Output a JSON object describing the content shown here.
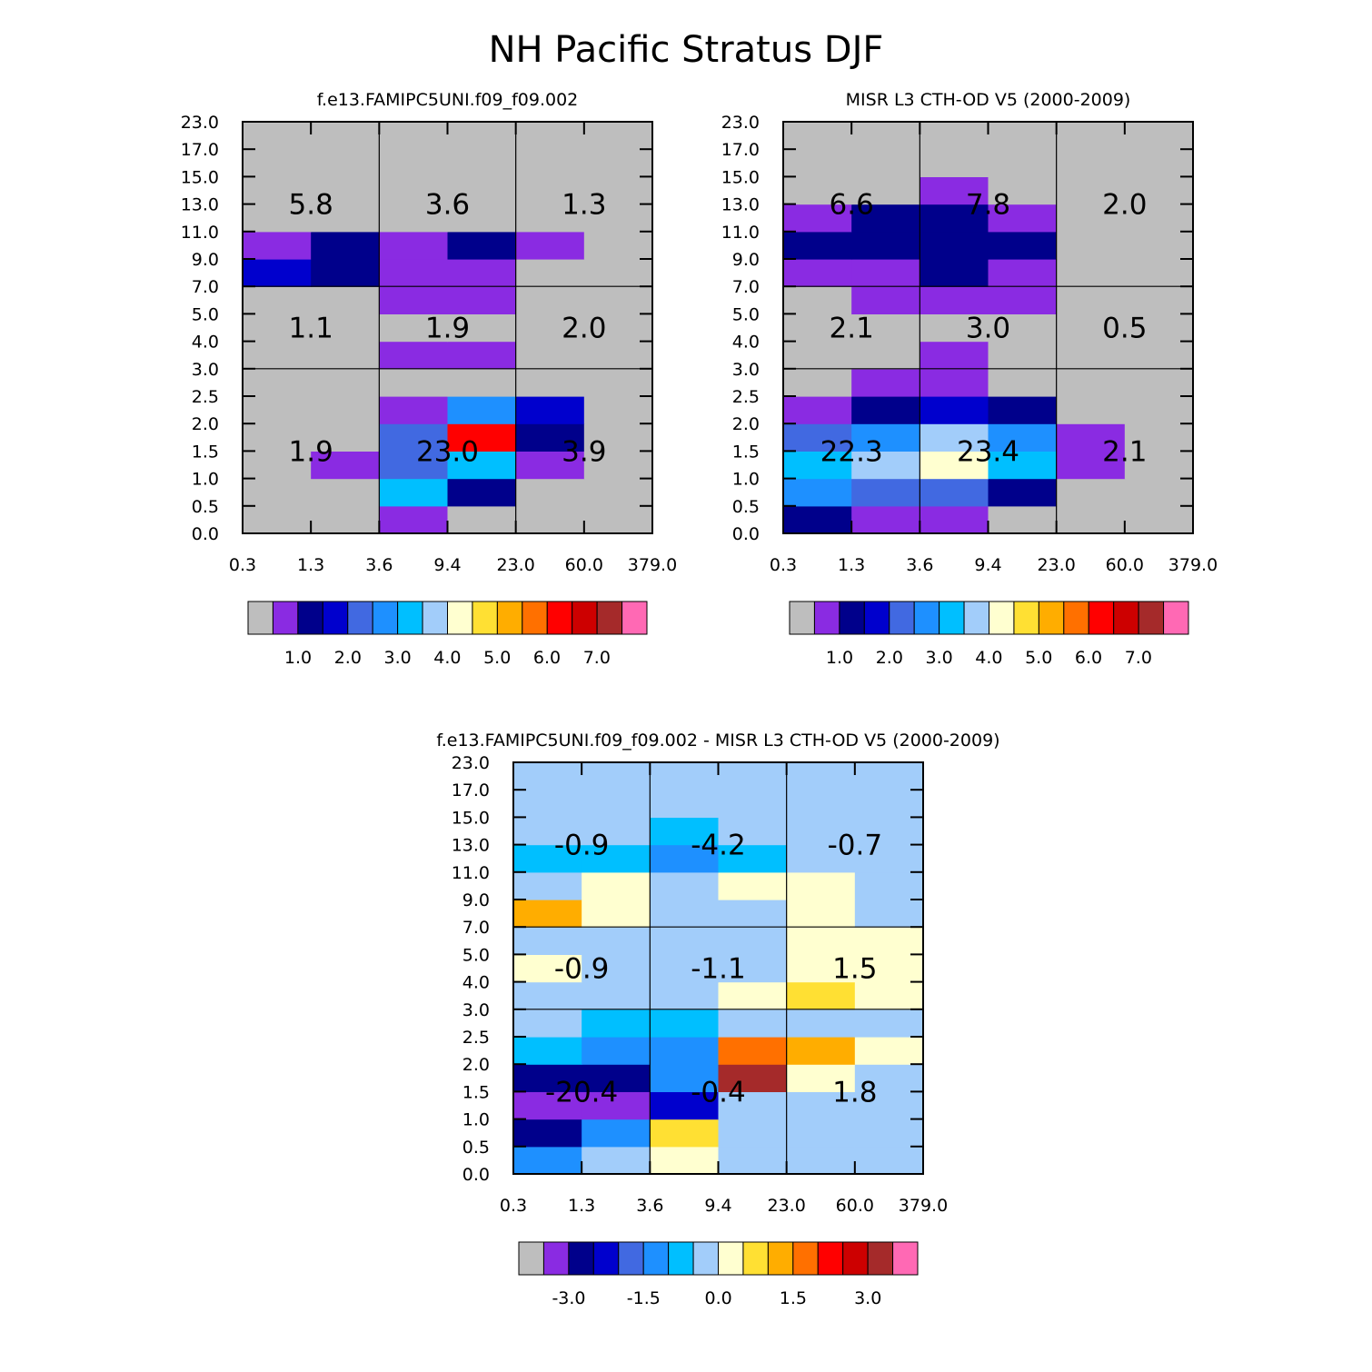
{
  "title": "NH Pacific Stratus DJF",
  "palette": [
    "#bebebe",
    "#8a2be2",
    "#00008b",
    "#0000cd",
    "#4169e1",
    "#1e90ff",
    "#00bfff",
    "#a2cdfa",
    "#ffffd0",
    "#ffe033",
    "#ffad00",
    "#ff7000",
    "#ff0000",
    "#cd0000",
    "#a52a2a",
    "#ff69b4"
  ],
  "chart_data": [
    {
      "type": "heatmap",
      "title": "f.e13.FAMIPC5UNI.f09_f09.002",
      "x_ticks": [
        "0.3",
        "1.3",
        "3.6",
        "9.4",
        "23.0",
        "60.0",
        "379.0"
      ],
      "y_ticks": [
        "0.0",
        "0.5",
        "1.0",
        "1.5",
        "2.0",
        "2.5",
        "3.0",
        "4.0",
        "5.0",
        "7.0",
        "9.0",
        "11.0",
        "13.0",
        "15.0",
        "17.0",
        "23.0"
      ],
      "cell_colors": [
        [
          0,
          0,
          1,
          0,
          0,
          0
        ],
        [
          0,
          0,
          6,
          2,
          0,
          0
        ],
        [
          0,
          1,
          4,
          6,
          1,
          0
        ],
        [
          0,
          0,
          4,
          12,
          2,
          0
        ],
        [
          0,
          0,
          1,
          5,
          3,
          0
        ],
        [
          0,
          0,
          0,
          0,
          0,
          0
        ],
        [
          0,
          0,
          1,
          1,
          0,
          0
        ],
        [
          0,
          0,
          0,
          0,
          0,
          0
        ],
        [
          0,
          0,
          1,
          1,
          0,
          0
        ],
        [
          3,
          2,
          1,
          1,
          0,
          0
        ],
        [
          1,
          2,
          1,
          2,
          1,
          0
        ],
        [
          0,
          0,
          0,
          0,
          0,
          0
        ],
        [
          0,
          0,
          0,
          0,
          0,
          0
        ],
        [
          0,
          0,
          0,
          0,
          0,
          0
        ],
        [
          0,
          0,
          0,
          0,
          0,
          0
        ]
      ],
      "group_sums": [
        [
          "1.9",
          "23.0",
          "3.9"
        ],
        [
          "1.1",
          "1.9",
          "2.0"
        ],
        [
          "5.8",
          "3.6",
          "1.3"
        ]
      ],
      "colorbar_labels": [
        "1.0",
        "2.0",
        "3.0",
        "4.0",
        "5.0",
        "6.0",
        "7.0"
      ]
    },
    {
      "type": "heatmap",
      "title": "MISR L3 CTH-OD V5 (2000-2009)",
      "x_ticks": [
        "0.3",
        "1.3",
        "3.6",
        "9.4",
        "23.0",
        "60.0",
        "379.0"
      ],
      "y_ticks": [
        "0.0",
        "0.5",
        "1.0",
        "1.5",
        "2.0",
        "2.5",
        "3.0",
        "4.0",
        "5.0",
        "7.0",
        "9.0",
        "11.0",
        "13.0",
        "15.0",
        "17.0",
        "23.0"
      ],
      "cell_colors": [
        [
          2,
          1,
          1,
          0,
          0,
          0
        ],
        [
          5,
          4,
          4,
          2,
          0,
          0
        ],
        [
          6,
          7,
          8,
          6,
          1,
          0
        ],
        [
          4,
          5,
          7,
          5,
          1,
          0
        ],
        [
          1,
          2,
          3,
          2,
          0,
          0
        ],
        [
          0,
          1,
          1,
          0,
          0,
          0
        ],
        [
          0,
          0,
          1,
          0,
          0,
          0
        ],
        [
          0,
          0,
          0,
          0,
          0,
          0
        ],
        [
          0,
          1,
          1,
          1,
          0,
          0
        ],
        [
          1,
          1,
          2,
          1,
          0,
          0
        ],
        [
          2,
          2,
          2,
          2,
          0,
          0
        ],
        [
          1,
          2,
          2,
          1,
          0,
          0
        ],
        [
          0,
          0,
          1,
          0,
          0,
          0
        ],
        [
          0,
          0,
          0,
          0,
          0,
          0
        ],
        [
          0,
          0,
          0,
          0,
          0,
          0
        ]
      ],
      "group_sums": [
        [
          "22.3",
          "23.4",
          "2.1"
        ],
        [
          "2.1",
          "3.0",
          "0.5"
        ],
        [
          "6.6",
          "7.8",
          "2.0"
        ]
      ],
      "colorbar_labels": [
        "1.0",
        "2.0",
        "3.0",
        "4.0",
        "5.0",
        "6.0",
        "7.0"
      ]
    },
    {
      "type": "heatmap",
      "title": "f.e13.FAMIPC5UNI.f09_f09.002 - MISR L3 CTH-OD V5 (2000-2009)",
      "x_ticks": [
        "0.3",
        "1.3",
        "3.6",
        "9.4",
        "23.0",
        "60.0",
        "379.0"
      ],
      "y_ticks": [
        "0.0",
        "0.5",
        "1.0",
        "1.5",
        "2.0",
        "2.5",
        "3.0",
        "4.0",
        "5.0",
        "7.0",
        "9.0",
        "11.0",
        "13.0",
        "15.0",
        "17.0",
        "23.0"
      ],
      "cell_colors": [
        [
          5,
          7,
          8,
          7,
          7,
          7
        ],
        [
          2,
          5,
          9,
          7,
          7,
          7
        ],
        [
          1,
          1,
          3,
          7,
          7,
          7
        ],
        [
          2,
          2,
          5,
          14,
          8,
          7
        ],
        [
          6,
          5,
          5,
          11,
          10,
          8
        ],
        [
          7,
          6,
          6,
          7,
          7,
          7
        ],
        [
          7,
          7,
          7,
          8,
          9,
          8
        ],
        [
          8,
          7,
          7,
          7,
          8,
          8
        ],
        [
          7,
          7,
          7,
          7,
          8,
          8
        ],
        [
          10,
          8,
          7,
          7,
          8,
          7
        ],
        [
          7,
          8,
          7,
          8,
          8,
          7
        ],
        [
          6,
          6,
          5,
          6,
          7,
          7
        ],
        [
          7,
          7,
          6,
          7,
          7,
          7
        ],
        [
          7,
          7,
          7,
          7,
          7,
          7
        ],
        [
          7,
          7,
          7,
          7,
          7,
          7
        ]
      ],
      "group_sums": [
        [
          "-20.4",
          "-0.4",
          "1.8"
        ],
        [
          "-0.9",
          "-1.1",
          "1.5"
        ],
        [
          "-0.9",
          "-4.2",
          "-0.7"
        ]
      ],
      "colorbar_labels": [
        "-3.0",
        "-1.5",
        "0.0",
        "1.5",
        "3.0"
      ]
    }
  ]
}
